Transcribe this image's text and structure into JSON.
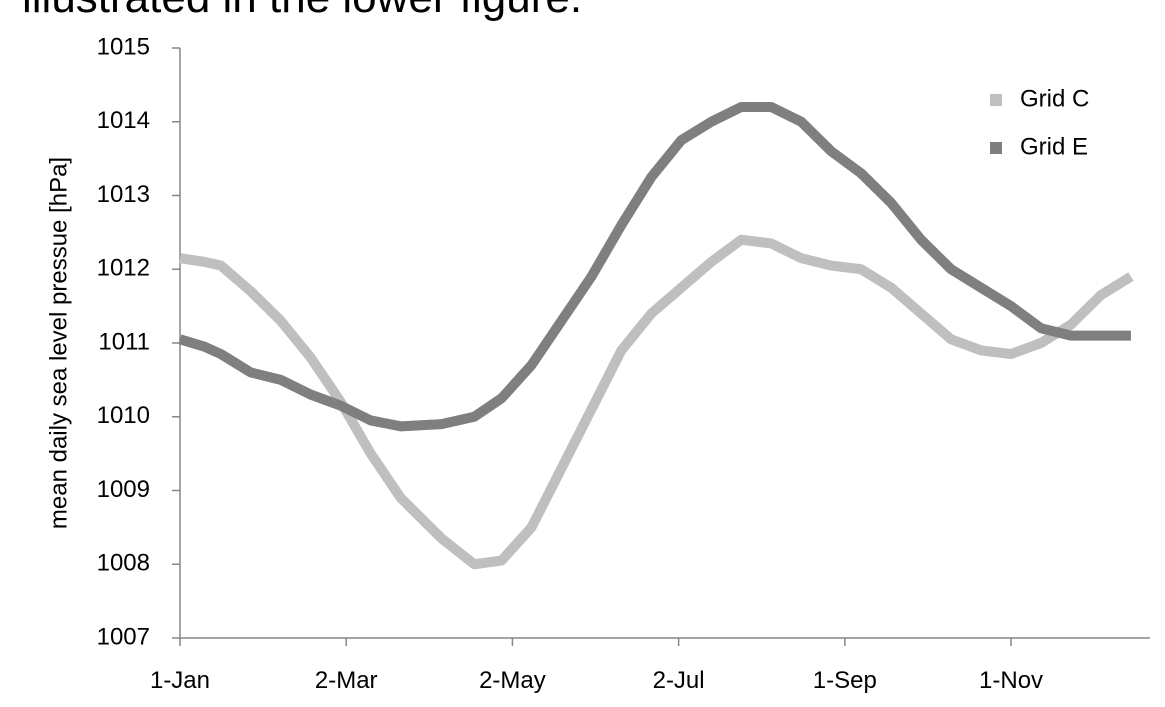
{
  "slide_text": "illustrated in the lower figure.",
  "chart_data": {
    "type": "line",
    "y_label": "mean daily sea level pressue [hPa]",
    "x": [
      0,
      9,
      15,
      26,
      37,
      48,
      59,
      70,
      81,
      96,
      108,
      118,
      129,
      140,
      151,
      162,
      173,
      184,
      195,
      206,
      217,
      228,
      239,
      250,
      261,
      272,
      283,
      294,
      305,
      316,
      327,
      338,
      349
    ],
    "series": [
      {
        "name": "Grid C",
        "color": "#bfbfbf",
        "values": [
          1012.15,
          1012.1,
          1012.05,
          1011.7,
          1011.3,
          1010.8,
          1010.2,
          1009.5,
          1008.9,
          1008.35,
          1008.0,
          1008.05,
          1008.5,
          1009.3,
          1010.1,
          1010.9,
          1011.4,
          1011.75,
          1012.1,
          1012.4,
          1012.35,
          1012.15,
          1012.05,
          1012.0,
          1011.75,
          1011.4,
          1011.05,
          1010.9,
          1010.85,
          1011.0,
          1011.25,
          1011.65,
          1011.9
        ]
      },
      {
        "name": "Grid E",
        "color": "#7f7f7f",
        "values": [
          1011.05,
          1010.95,
          1010.85,
          1010.6,
          1010.5,
          1010.3,
          1010.15,
          1009.95,
          1009.87,
          1009.9,
          1010.0,
          1010.25,
          1010.7,
          1011.3,
          1011.9,
          1012.6,
          1013.25,
          1013.75,
          1014.0,
          1014.2,
          1014.2,
          1014.0,
          1013.6,
          1013.3,
          1012.9,
          1012.4,
          1012.0,
          1011.75,
          1011.5,
          1011.2,
          1011.1,
          1011.1,
          1011.1
        ]
      }
    ],
    "xlim": [
      0,
      356
    ],
    "xticks": [
      {
        "value": 0,
        "label": "1-Jan"
      },
      {
        "value": 61,
        "label": "2-Mar"
      },
      {
        "value": 122,
        "label": "2-May"
      },
      {
        "value": 183,
        "label": "2-Jul"
      },
      {
        "value": 244,
        "label": "1-Sep"
      },
      {
        "value": 305,
        "label": "1-Nov"
      }
    ],
    "ylim": [
      1007,
      1015
    ],
    "yticks": [
      1007,
      1008,
      1009,
      1010,
      1011,
      1012,
      1013,
      1014,
      1015
    ],
    "legend": "top-right"
  }
}
